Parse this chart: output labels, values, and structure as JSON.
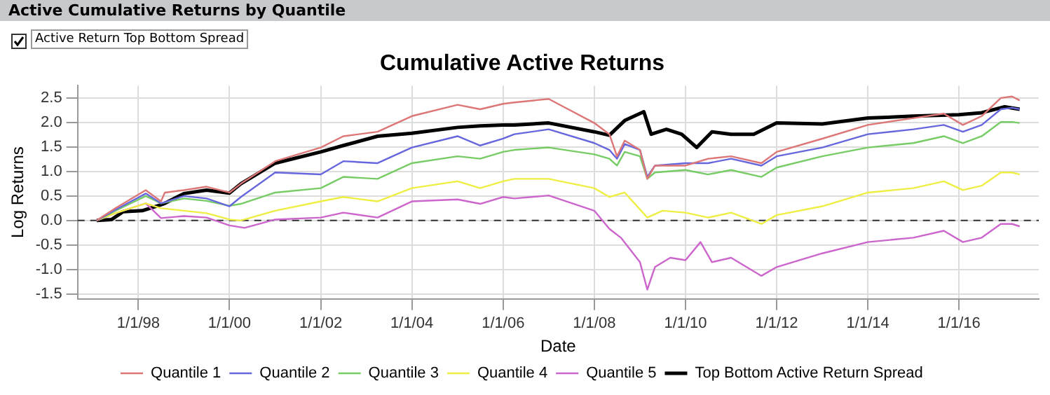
{
  "chart_data": {
    "type": "line",
    "title": "Cumulative Active Returns",
    "xlabel": "Date",
    "ylabel": "Log Returns",
    "annotations": [
      "Active Cumulative Returns by Quantile",
      "Active Return Top Bottom Spread"
    ],
    "xlim": [
      "1996-09-01",
      "2017-10-01"
    ],
    "xticks": [
      {
        "value": "1998-01-01",
        "label": "1/1/98"
      },
      {
        "value": "2000-01-01",
        "label": "1/1/00"
      },
      {
        "value": "2002-01-01",
        "label": "1/1/02"
      },
      {
        "value": "2004-01-01",
        "label": "1/1/04"
      },
      {
        "value": "2006-01-01",
        "label": "1/1/06"
      },
      {
        "value": "2008-01-01",
        "label": "1/1/08"
      },
      {
        "value": "2010-01-01",
        "label": "1/1/10"
      },
      {
        "value": "2012-01-01",
        "label": "1/1/12"
      },
      {
        "value": "2014-01-01",
        "label": "1/1/14"
      },
      {
        "value": "2016-01-01",
        "label": "1/1/16"
      }
    ],
    "ylim": [
      -1.6,
      2.75
    ],
    "yticks": [
      {
        "value": -1.5,
        "label": "-1.5"
      },
      {
        "value": -1,
        "label": "-1.0"
      },
      {
        "value": -0.5,
        "label": "-0.5"
      },
      {
        "value": 0,
        "label": "0.0"
      },
      {
        "value": 0.5,
        "label": "0.5"
      },
      {
        "value": 1,
        "label": "1.0"
      },
      {
        "value": 1.5,
        "label": "1.5"
      },
      {
        "value": 2,
        "label": "2.0"
      },
      {
        "value": 2.5,
        "label": "2.5"
      }
    ],
    "grid": true,
    "legend": "bottom",
    "marker": "none",
    "ref_lines": [
      {
        "axis": "y",
        "value": 0,
        "color": "#333333",
        "line_style": "dashed"
      }
    ],
    "series": [
      {
        "name": "Quantile 1",
        "color": "#dd7777",
        "x": [
          "1997-02",
          "1997-07",
          "1998-03",
          "1998-07",
          "1998-08",
          "1999-01",
          "1999-07",
          "2000-01",
          "2000-04",
          "2001-01",
          "2002-01",
          "2002-07",
          "2003-04",
          "2004-01",
          "2005-01",
          "2005-07",
          "2006-01",
          "2006-04",
          "2007-01",
          "2007-04",
          "2008-01",
          "2008-05",
          "2008-07",
          "2008-09",
          "2009-01",
          "2009-03",
          "2009-05",
          "2010-01",
          "2010-07",
          "2011-01",
          "2011-09",
          "2012-01",
          "2013-01",
          "2014-01",
          "2015-01",
          "2015-09",
          "2016-02",
          "2016-07",
          "2016-12",
          "2017-03",
          "2017-05"
        ],
        "values": [
          0,
          0.25,
          0.62,
          0.39,
          0.57,
          0.62,
          0.69,
          0.57,
          0.75,
          1.21,
          1.49,
          1.72,
          1.81,
          2.13,
          2.36,
          2.27,
          2.38,
          2.41,
          2.48,
          2.36,
          1.99,
          1.76,
          1.31,
          1.63,
          1.44,
          0.85,
          1.12,
          1.12,
          1.26,
          1.31,
          1.17,
          1.4,
          1.67,
          1.95,
          2.09,
          2.18,
          1.95,
          2.13,
          2.5,
          2.53,
          2.45
        ]
      },
      {
        "name": "Quantile 2",
        "color": "#6666dd",
        "x": [
          "1997-02",
          "1997-07",
          "1998-03",
          "1998-07",
          "1999-01",
          "1999-07",
          "2000-01",
          "2000-04",
          "2001-01",
          "2002-01",
          "2002-07",
          "2003-04",
          "2004-01",
          "2005-01",
          "2005-07",
          "2006-01",
          "2006-04",
          "2007-01",
          "2008-01",
          "2008-05",
          "2008-07",
          "2008-09",
          "2009-01",
          "2009-03",
          "2009-05",
          "2010-01",
          "2010-07",
          "2011-01",
          "2011-09",
          "2012-01",
          "2013-01",
          "2014-01",
          "2015-01",
          "2015-09",
          "2016-02",
          "2016-07",
          "2016-12",
          "2017-03",
          "2017-05"
        ],
        "values": [
          0,
          0.22,
          0.55,
          0.35,
          0.5,
          0.45,
          0.29,
          0.48,
          0.98,
          0.94,
          1.21,
          1.17,
          1.49,
          1.72,
          1.53,
          1.67,
          1.76,
          1.86,
          1.58,
          1.44,
          1.26,
          1.56,
          1.44,
          0.89,
          1.12,
          1.17,
          1.17,
          1.26,
          1.12,
          1.31,
          1.49,
          1.76,
          1.86,
          1.95,
          1.81,
          1.95,
          2.27,
          2.3,
          2.27
        ]
      },
      {
        "name": "Quantile 3",
        "color": "#77cc66",
        "x": [
          "1997-02",
          "1997-07",
          "1998-03",
          "1998-07",
          "1999-01",
          "1999-07",
          "2000-01",
          "2000-04",
          "2001-01",
          "2002-01",
          "2002-07",
          "2003-04",
          "2004-01",
          "2005-01",
          "2005-07",
          "2006-01",
          "2006-04",
          "2007-01",
          "2008-01",
          "2008-05",
          "2008-07",
          "2008-09",
          "2009-01",
          "2009-03",
          "2009-05",
          "2010-01",
          "2010-07",
          "2011-01",
          "2011-09",
          "2012-01",
          "2013-01",
          "2014-01",
          "2015-01",
          "2015-09",
          "2016-02",
          "2016-07",
          "2016-12",
          "2017-03",
          "2017-05"
        ],
        "values": [
          0,
          0.2,
          0.5,
          0.35,
          0.45,
          0.4,
          0.3,
          0.34,
          0.57,
          0.66,
          0.89,
          0.85,
          1.17,
          1.31,
          1.26,
          1.4,
          1.44,
          1.49,
          1.35,
          1.26,
          1.12,
          1.4,
          1.31,
          0.85,
          0.98,
          1.03,
          0.94,
          1.03,
          0.89,
          1.08,
          1.31,
          1.49,
          1.58,
          1.72,
          1.58,
          1.72,
          2.01,
          2.01,
          1.99
        ]
      },
      {
        "name": "Quantile 4",
        "color": "#eeee44",
        "x": [
          "1997-02",
          "1997-07",
          "1998-03",
          "1998-07",
          "1999-01",
          "1999-07",
          "2000-01",
          "2000-04",
          "2001-01",
          "2002-01",
          "2002-07",
          "2003-04",
          "2004-01",
          "2005-01",
          "2005-07",
          "2006-01",
          "2006-04",
          "2007-01",
          "2008-01",
          "2008-05",
          "2008-09",
          "2009-03",
          "2009-07",
          "2010-01",
          "2010-07",
          "2011-01",
          "2011-09",
          "2012-01",
          "2013-01",
          "2014-01",
          "2015-01",
          "2015-09",
          "2016-02",
          "2016-07",
          "2016-12",
          "2017-03",
          "2017-05"
        ],
        "values": [
          0,
          0.15,
          0.35,
          0.25,
          0.2,
          0.15,
          0.02,
          0,
          0.2,
          0.39,
          0.48,
          0.39,
          0.66,
          0.8,
          0.66,
          0.8,
          0.85,
          0.85,
          0.66,
          0.48,
          0.57,
          0.06,
          0.2,
          0.16,
          0.06,
          0.16,
          -0.07,
          0.11,
          0.29,
          0.57,
          0.66,
          0.8,
          0.62,
          0.71,
          0.98,
          0.98,
          0.94
        ]
      },
      {
        "name": "Quantile 5",
        "color": "#cc66cc",
        "x": [
          "1997-02",
          "1997-07",
          "1998-03",
          "1998-07",
          "1999-01",
          "1999-07",
          "2000-01",
          "2000-05",
          "2001-01",
          "2002-01",
          "2002-07",
          "2003-04",
          "2004-01",
          "2005-01",
          "2005-07",
          "2006-01",
          "2006-04",
          "2007-01",
          "2008-01",
          "2008-05",
          "2008-08",
          "2009-01",
          "2009-03",
          "2009-05",
          "2009-09",
          "2010-01",
          "2010-05",
          "2010-08",
          "2011-01",
          "2011-09",
          "2012-01",
          "2013-01",
          "2014-01",
          "2015-01",
          "2015-09",
          "2016-02",
          "2016-07",
          "2016-12",
          "2017-03",
          "2017-05"
        ],
        "values": [
          0,
          0.15,
          0.35,
          0.05,
          0.09,
          0.06,
          -0.1,
          -0.15,
          0.02,
          0.06,
          0.16,
          0.06,
          0.39,
          0.43,
          0.34,
          0.48,
          0.45,
          0.51,
          0.2,
          -0.17,
          -0.35,
          -0.85,
          -1.41,
          -0.95,
          -0.76,
          -0.81,
          -0.44,
          -0.85,
          -0.76,
          -1.13,
          -0.95,
          -0.67,
          -0.44,
          -0.35,
          -0.21,
          -0.44,
          -0.35,
          -0.07,
          -0.07,
          -0.12
        ]
      },
      {
        "name": "Top Bottom Active Return Spread",
        "color": "#000000",
        "x": [
          "1997-02",
          "1997-06",
          "1997-09",
          "1998-02",
          "1998-07",
          "1998-08",
          "1999-01",
          "1999-07",
          "2000-01",
          "2000-04",
          "2001-01",
          "2002-01",
          "2002-07",
          "2003-04",
          "2004-01",
          "2005-01",
          "2005-07",
          "2006-01",
          "2006-04",
          "2007-01",
          "2008-01",
          "2008-05",
          "2008-09",
          "2009-02",
          "2009-04",
          "2009-08",
          "2009-12",
          "2010-04",
          "2010-08",
          "2011-01",
          "2011-07",
          "2012-01",
          "2013-01",
          "2014-01",
          "2015-01",
          "2016-01",
          "2016-07",
          "2017-01",
          "2017-05"
        ],
        "values": [
          0,
          0.02,
          0.18,
          0.2,
          0.32,
          0.35,
          0.55,
          0.62,
          0.56,
          0.75,
          1.17,
          1.4,
          1.53,
          1.72,
          1.78,
          1.9,
          1.93,
          1.95,
          1.95,
          1.99,
          1.81,
          1.74,
          2.04,
          2.22,
          1.76,
          1.86,
          1.76,
          1.49,
          1.81,
          1.76,
          1.76,
          1.99,
          1.97,
          2.09,
          2.13,
          2.16,
          2.2,
          2.32,
          2.27
        ]
      }
    ]
  }
}
